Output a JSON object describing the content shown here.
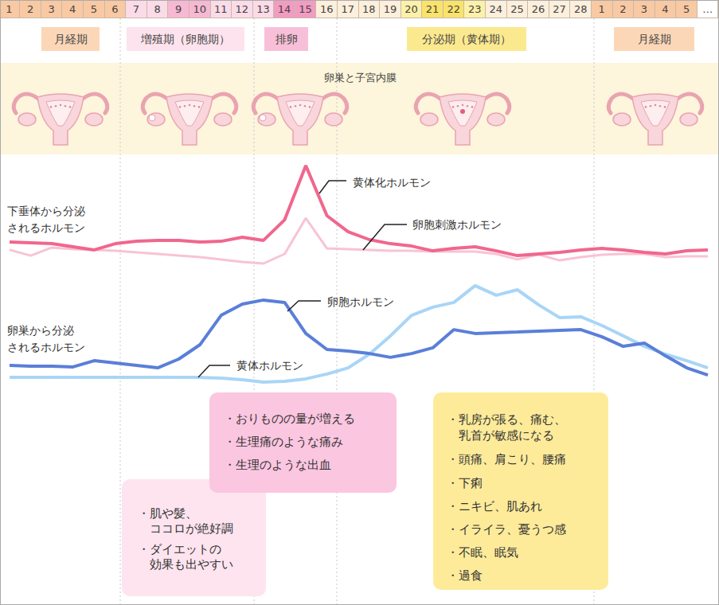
{
  "chart_data": {
    "type": "line",
    "categories": [
      "1",
      "2",
      "3",
      "4",
      "5",
      "6",
      "7",
      "8",
      "9",
      "10",
      "11",
      "12",
      "13",
      "14",
      "15",
      "16",
      "17",
      "18",
      "19",
      "20",
      "21",
      "22",
      "23",
      "24",
      "25",
      "26",
      "27",
      "28",
      "1",
      "2",
      "3",
      "4",
      "5",
      "…"
    ],
    "ylim": [
      0,
      100
    ],
    "tick_labels": false,
    "grid": false,
    "series": [
      {
        "name": "黄体化ホルモン",
        "color": "#f0678d",
        "values": [
          64,
          63.7,
          63.3,
          62,
          60.7,
          63.3,
          64.3,
          64.7,
          64.7,
          64,
          64.3,
          66,
          64.7,
          73.3,
          96,
          75,
          68.3,
          65,
          63.3,
          62.3,
          60.3,
          61.3,
          62,
          60.3,
          58.3,
          59,
          59.7,
          60.7,
          61.3,
          60.7,
          59.7,
          59,
          60.3,
          60.7
        ]
      },
      {
        "name": "卵胞刺激ホルモン",
        "color": "#f8c3d3",
        "values": [
          60.7,
          58.3,
          61.7,
          61,
          60.7,
          60.3,
          59.7,
          59,
          58.3,
          57.7,
          56.7,
          55.7,
          55,
          59,
          74,
          61.3,
          61,
          60.7,
          60.3,
          60.3,
          60,
          60,
          60,
          59,
          56.7,
          58.7,
          56.3,
          57.7,
          58.7,
          59,
          59,
          57.7,
          58,
          58
        ]
      },
      {
        "name": "卵胞ホルモン",
        "color": "#5a7fd8",
        "values": [
          12.3,
          12,
          12,
          11.7,
          14.3,
          13.3,
          12.3,
          11.3,
          15,
          21,
          33.3,
          38,
          39.7,
          38.7,
          25.7,
          19,
          18.3,
          17.3,
          15.7,
          17.3,
          19.7,
          27.3,
          25.7,
          26,
          26.3,
          26.7,
          27,
          27.3,
          24.3,
          20.3,
          21.7,
          16.3,
          11.3,
          8.3
        ]
      },
      {
        "name": "黄体ホルモン",
        "color": "#a9d5f6",
        "values": [
          7.3,
          7.3,
          7.3,
          7.3,
          7.3,
          7.3,
          7.3,
          7.3,
          7.3,
          7.3,
          7,
          6.3,
          5.3,
          5.7,
          6.7,
          8.7,
          11.3,
          17,
          24.7,
          33.3,
          36.7,
          38.7,
          45.7,
          41.7,
          44,
          37.7,
          32.3,
          32.7,
          29,
          24.7,
          20.3,
          17,
          14.3,
          11.3
        ]
      }
    ],
    "annotations": [
      {
        "lines": [
          "下垂体から分泌",
          "されるホルモン"
        ]
      },
      {
        "lines": [
          "卵巣から分泌",
          "されるホルモン"
        ]
      }
    ]
  },
  "phases": [
    "月経期",
    "増殖期（卵胞期）",
    "排卵",
    "分泌期（黄体期）",
    "月経期"
  ],
  "panel_title": "卵巣と子宮内膜",
  "bullet": "・",
  "notes": [
    {
      "items": [
        [
          "肌や髪、",
          "ココロが絶好調"
        ],
        [
          "ダイエットの",
          "効果も出やすい"
        ]
      ]
    },
    {
      "items": [
        [
          "おりものの量が増える"
        ],
        [
          "生理痛のような痛み"
        ],
        [
          "生理のような出血"
        ]
      ]
    },
    {
      "items": [
        [
          "乳房が張る、痛む、",
          "乳首が敏感になる"
        ],
        [
          "頭痛、肩こり、腰痛"
        ],
        [
          "下痢"
        ],
        [
          "ニキビ、肌あれ"
        ],
        [
          "イライラ、憂うつ感"
        ],
        [
          "不眠、眠気"
        ],
        [
          "過食"
        ]
      ]
    }
  ]
}
